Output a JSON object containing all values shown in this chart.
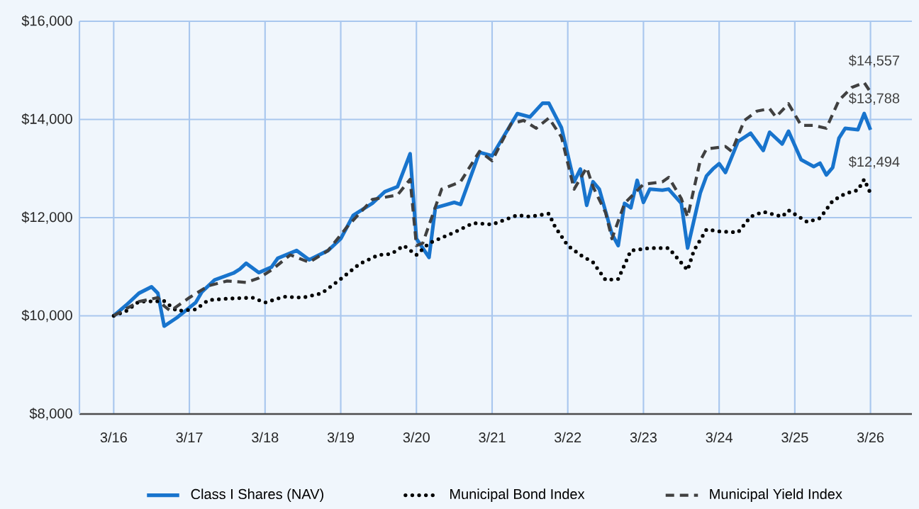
{
  "chart_data": {
    "type": "line",
    "xlim": [
      "2015-09-18",
      "2026-09-18"
    ],
    "ylim": [
      8000,
      16000
    ],
    "xticks": [
      {
        "value": "2016-03",
        "label": "3/16"
      },
      {
        "value": "2017-03",
        "label": "3/17"
      },
      {
        "value": "2018-03",
        "label": "3/18"
      },
      {
        "value": "2019-03",
        "label": "3/19"
      },
      {
        "value": "2020-03",
        "label": "3/20"
      },
      {
        "value": "2021-03",
        "label": "3/21"
      },
      {
        "value": "2022-03",
        "label": "3/22"
      },
      {
        "value": "2023-03",
        "label": "3/23"
      },
      {
        "value": "2024-03",
        "label": "3/24"
      },
      {
        "value": "2025-03",
        "label": "3/25"
      },
      {
        "value": "2026-03",
        "label": "3/26"
      }
    ],
    "yticks": [
      {
        "value": 8000,
        "label": "$8,000"
      },
      {
        "value": 10000,
        "label": "$10,000"
      },
      {
        "value": 12000,
        "label": "$12,000"
      },
      {
        "value": 14000,
        "label": "$14,000"
      },
      {
        "value": 16000,
        "label": "$16,000"
      }
    ],
    "grid": true,
    "legend": "bottom",
    "marker": "none",
    "series": [
      {
        "name": "Class I Shares (NAV)",
        "color": "#1874cd",
        "line_style": "solid",
        "x": [
          "2016-03",
          "2016-05",
          "2016-07",
          "2016-09",
          "2016-10",
          "2016-11",
          "2017-01",
          "2017-04",
          "2017-05",
          "2017-07",
          "2017-10",
          "2017-11",
          "2017-12",
          "2018-02",
          "2018-04",
          "2018-05",
          "2018-08",
          "2018-10",
          "2019-01",
          "2019-03",
          "2019-05",
          "2019-08",
          "2019-10",
          "2019-12",
          "2020-02",
          "2020-03",
          "2020-05",
          "2020-06",
          "2020-09",
          "2020-10",
          "2021-01",
          "2021-03",
          "2021-07",
          "2021-09",
          "2021-11",
          "2021-12",
          "2022-02",
          "2022-04",
          "2022-05",
          "2022-06",
          "2022-07",
          "2022-08",
          "2022-10",
          "2022-11",
          "2022-12",
          "2023-01",
          "2023-02",
          "2023-03",
          "2023-04",
          "2023-06",
          "2023-07",
          "2023-09",
          "2023-10",
          "2023-12",
          "2024-01",
          "2024-02",
          "2024-03",
          "2024-04",
          "2024-06",
          "2024-08",
          "2024-10",
          "2024-11",
          "2025-01",
          "2025-02",
          "2025-04",
          "2025-06",
          "2025-07",
          "2025-08",
          "2025-09",
          "2025-10",
          "2025-11",
          "2026-01",
          "2026-02",
          "2026-03"
        ],
        "values": [
          10000,
          10220,
          10460,
          10590,
          10460,
          9790,
          9960,
          10270,
          10490,
          10730,
          10870,
          10950,
          11070,
          10880,
          10990,
          11170,
          11330,
          11140,
          11330,
          11570,
          12050,
          12290,
          12530,
          12630,
          13300,
          11570,
          11190,
          12200,
          12310,
          12270,
          13330,
          13260,
          14120,
          14050,
          14330,
          14330,
          13830,
          12730,
          12990,
          12250,
          12730,
          12580,
          11670,
          11430,
          12290,
          12200,
          12760,
          12310,
          12580,
          12560,
          12580,
          12290,
          11380,
          12500,
          12850,
          12990,
          13100,
          12920,
          13550,
          13720,
          13370,
          13740,
          13500,
          13760,
          13180,
          13040,
          13110,
          12870,
          13020,
          13620,
          13820,
          13790,
          14120,
          13788
        ]
      },
      {
        "name": "Municipal Bond Index",
        "color": "#000000",
        "line_style": "dotted",
        "x": [
          "2016-03",
          "2016-05",
          "2016-07",
          "2016-11",
          "2017-01",
          "2017-04",
          "2017-06",
          "2017-09",
          "2018-01",
          "2018-03",
          "2018-06",
          "2018-09",
          "2018-12",
          "2019-03",
          "2019-06",
          "2019-09",
          "2019-11",
          "2020-01",
          "2020-03",
          "2020-05",
          "2020-09",
          "2020-12",
          "2021-03",
          "2021-07",
          "2021-09",
          "2021-12",
          "2022-01",
          "2022-03",
          "2022-05",
          "2022-07",
          "2022-09",
          "2022-11",
          "2022-12",
          "2023-01",
          "2023-04",
          "2023-07",
          "2023-10",
          "2023-11",
          "2024-01",
          "2024-03",
          "2024-06",
          "2024-08",
          "2024-10",
          "2025-01",
          "2025-02",
          "2025-05",
          "2025-07",
          "2025-09",
          "2025-11",
          "2026-01",
          "2026-02",
          "2026-03"
        ],
        "values": [
          10000,
          10100,
          10290,
          10300,
          10100,
          10130,
          10320,
          10350,
          10370,
          10270,
          10390,
          10370,
          10460,
          10750,
          11060,
          11240,
          11260,
          11430,
          11240,
          11480,
          11700,
          11890,
          11860,
          12050,
          12020,
          12080,
          11810,
          11430,
          11240,
          11090,
          10730,
          10750,
          11040,
          11330,
          11380,
          11380,
          10930,
          11330,
          11760,
          11720,
          11700,
          12020,
          12120,
          12020,
          12150,
          11910,
          11990,
          12340,
          12490,
          12560,
          12780,
          12494
        ]
      },
      {
        "name": "Municipal Yield Index",
        "color": "#404040",
        "line_style": "dashed",
        "x": [
          "2016-03",
          "2016-07",
          "2016-10",
          "2016-11",
          "2016-12",
          "2017-03",
          "2017-06",
          "2017-09",
          "2017-12",
          "2018-02",
          "2018-04",
          "2018-07",
          "2018-10",
          "2019-01",
          "2019-04",
          "2019-08",
          "2019-12",
          "2020-02",
          "2020-03",
          "2020-04",
          "2020-07",
          "2020-09",
          "2020-10",
          "2021-01",
          "2021-03",
          "2021-06",
          "2021-08",
          "2021-10",
          "2021-12",
          "2022-02",
          "2022-04",
          "2022-06",
          "2022-07",
          "2022-09",
          "2022-10",
          "2022-12",
          "2023-03",
          "2023-06",
          "2023-07",
          "2023-09",
          "2023-10",
          "2023-12",
          "2024-01",
          "2024-04",
          "2024-05",
          "2024-07",
          "2024-09",
          "2024-11",
          "2024-12",
          "2025-02",
          "2025-04",
          "2025-06",
          "2025-08",
          "2025-10",
          "2025-12",
          "2026-02",
          "2026-03"
        ],
        "values": [
          10000,
          10290,
          10370,
          10200,
          10100,
          10370,
          10610,
          10710,
          10680,
          10770,
          10930,
          11240,
          11090,
          11330,
          11810,
          12370,
          12460,
          12780,
          11430,
          11480,
          12580,
          12680,
          12730,
          13350,
          13160,
          13910,
          13980,
          13820,
          14030,
          13640,
          12580,
          13020,
          12630,
          12100,
          11570,
          12290,
          12680,
          12730,
          12820,
          12390,
          12010,
          13160,
          13400,
          13450,
          13350,
          13980,
          14170,
          14220,
          14050,
          14320,
          13880,
          13880,
          13820,
          14390,
          14650,
          14750,
          14557
        ]
      }
    ],
    "annotations": [
      {
        "text": "$14,557",
        "x": "2026-03",
        "y": 14557
      },
      {
        "text": "$13,788",
        "x": "2026-03",
        "y": 13788
      },
      {
        "text": "$12,494",
        "x": "2026-03",
        "y": 12494
      }
    ]
  }
}
